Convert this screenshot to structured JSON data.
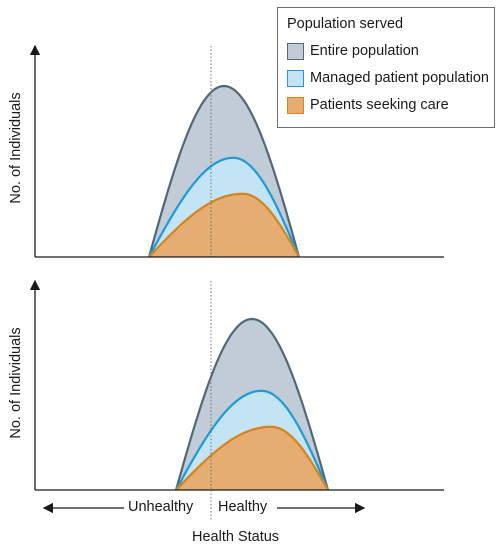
{
  "legend": {
    "title": "Population served",
    "items": [
      {
        "label": "Entire population",
        "fill": "#c2ccd6",
        "stroke": "#50697a"
      },
      {
        "label": "Managed patient population",
        "fill": "#c3e4f5",
        "stroke": "#1f9ad6"
      },
      {
        "label": "Patients seeking care",
        "fill": "#e6ad72",
        "stroke": "#d4841c"
      }
    ]
  },
  "axes": {
    "ylabel": "No. of Individuals",
    "xlabel": "Health Status",
    "left_label": "Unhealthy",
    "right_label": "Healthy"
  },
  "chart_data": [
    {
      "type": "area",
      "ylabel": "No. of Individuals",
      "divider": "dotted line between unhealthy and healthy",
      "series": [
        {
          "name": "Entire population",
          "peak_height": 1.0,
          "start": -0.35,
          "end": 0.45,
          "peak_at": 0.05
        },
        {
          "name": "Managed patient population",
          "peak_height": 0.58,
          "start": -0.35,
          "end": 0.45,
          "peak_at": 0.1
        },
        {
          "name": "Patients seeking care",
          "peak_height": 0.37,
          "start": -0.35,
          "end": 0.45,
          "peak_at": 0.15
        }
      ]
    },
    {
      "type": "area",
      "ylabel": "No. of Individuals",
      "xlabel": "Health Status",
      "divider": "dotted line between unhealthy and healthy",
      "series": [
        {
          "name": "Entire population",
          "peak_height": 1.0,
          "start": -0.2,
          "end": 0.6,
          "peak_at": 0.2
        },
        {
          "name": "Managed patient population",
          "peak_height": 0.58,
          "start": -0.2,
          "end": 0.6,
          "peak_at": 0.25
        },
        {
          "name": "Patients seeking care",
          "peak_height": 0.37,
          "start": -0.2,
          "end": 0.6,
          "peak_at": 0.3
        }
      ]
    }
  ]
}
